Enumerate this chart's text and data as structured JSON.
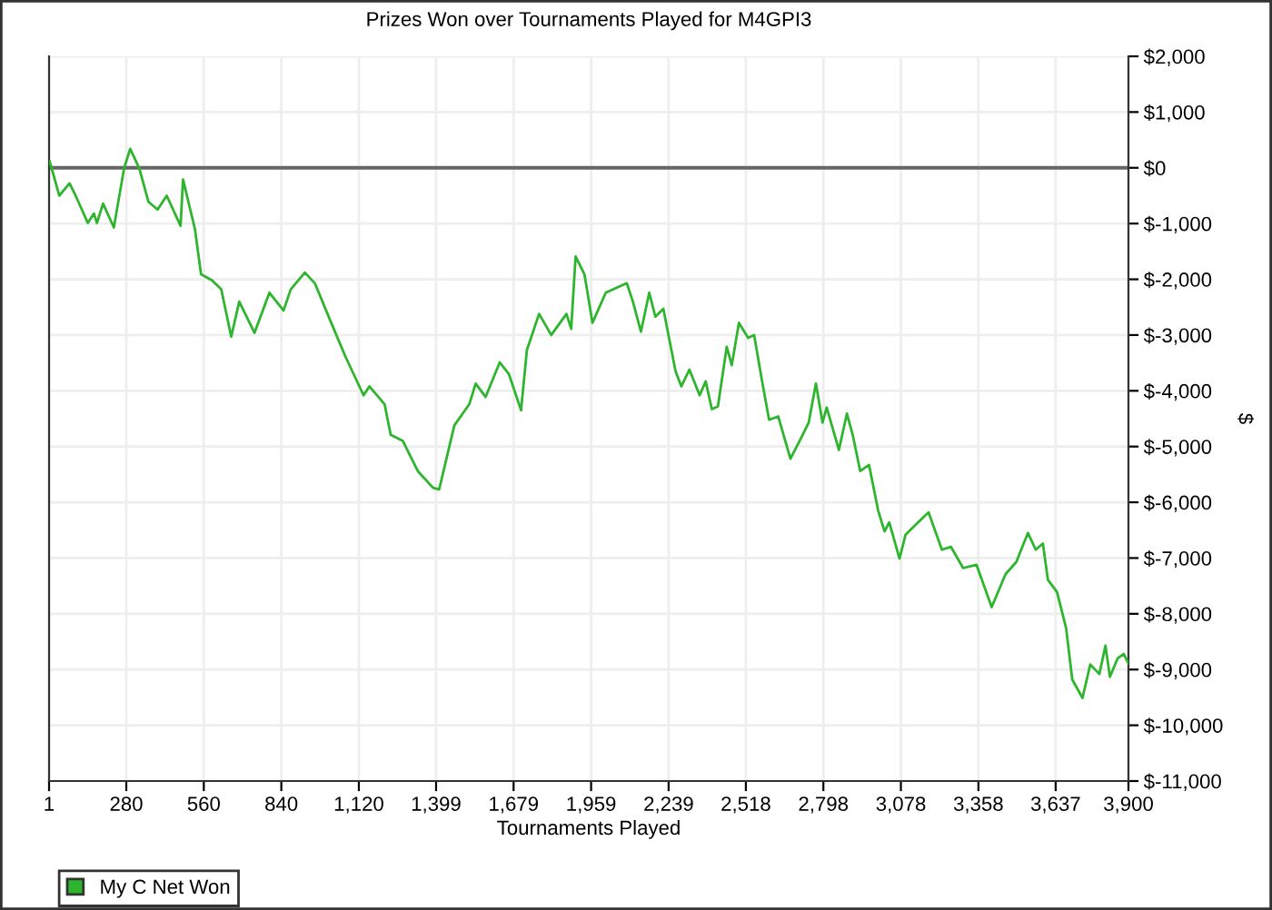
{
  "chart_data": {
    "type": "line",
    "title": "Prizes Won over Tournaments Played for M4GPI3",
    "xlabel": "Tournaments Played",
    "ylabel": "$",
    "xlim": [
      1,
      3900
    ],
    "xticks": [
      1,
      280,
      560,
      840,
      {
        "value": 1120,
        "label": "1,120"
      },
      {
        "value": 1399,
        "label": "1,399"
      },
      {
        "value": 1679,
        "label": "1,679"
      },
      {
        "value": 1959,
        "label": "1,959"
      },
      {
        "value": 2239,
        "label": "2,239"
      },
      {
        "value": 2518,
        "label": "2,518"
      },
      {
        "value": 2798,
        "label": "2,798"
      },
      {
        "value": 3078,
        "label": "3,078"
      },
      {
        "value": 3358,
        "label": "3,358"
      },
      {
        "value": 3637,
        "label": "3,637"
      },
      {
        "value": 3900,
        "label": "3,900"
      }
    ],
    "ylim": [
      -11000,
      2000
    ],
    "yticks": [
      {
        "value": 2000,
        "label": "$2,000"
      },
      {
        "value": 1000,
        "label": "$1,000"
      },
      {
        "value": 0,
        "label": "$0"
      },
      {
        "value": -1000,
        "label": "$-1,000"
      },
      {
        "value": -2000,
        "label": "$-2,000"
      },
      {
        "value": -3000,
        "label": "$-3,000"
      },
      {
        "value": -4000,
        "label": "$-4,000"
      },
      {
        "value": -5000,
        "label": "$-5,000"
      },
      {
        "value": -6000,
        "label": "$-6,000"
      },
      {
        "value": -7000,
        "label": "$-7,000"
      },
      {
        "value": -8000,
        "label": "$-8,000"
      },
      {
        "value": -9000,
        "label": "$-9,000"
      },
      {
        "value": -10000,
        "label": "$-10,000"
      },
      {
        "value": -11000,
        "label": "$-11,000"
      }
    ],
    "grid": true,
    "legend": "bottom left",
    "marker": "none",
    "line_style": "solid",
    "ref_lines": [
      {
        "axis": "y",
        "value": 0,
        "color": "#666666"
      }
    ],
    "series": [
      {
        "name": "My C Net Won",
        "color": "#2db52d",
        "x": [
          3,
          38,
          75,
          97,
          141,
          163,
          174,
          196,
          235,
          272,
          294,
          327,
          360,
          393,
          426,
          476,
          485,
          528,
          550,
          590,
          623,
          659,
          688,
          743,
          797,
          848,
          874,
          925,
          961,
          1016,
          1071,
          1137,
          1158,
          1213,
          1235,
          1279,
          1333,
          1388,
          1410,
          1465,
          1519,
          1542,
          1578,
          1629,
          1662,
          1706,
          1727,
          1771,
          1815,
          1870,
          1887,
          1903,
          1935,
          1964,
          2012,
          2088,
          2110,
          2139,
          2169,
          2191,
          2220,
          2264,
          2285,
          2314,
          2351,
          2373,
          2395,
          2417,
          2449,
          2467,
          2493,
          2526,
          2548,
          2576,
          2602,
          2635,
          2679,
          2712,
          2745,
          2771,
          2795,
          2810,
          2854,
          2883,
          2904,
          2931,
          2963,
          2996,
          3019,
          3036,
          3073,
          3095,
          3128,
          3178,
          3226,
          3259,
          3303,
          3351,
          3406,
          3456,
          3495,
          3537,
          3565,
          3591,
          3609,
          3642,
          3675,
          3697,
          3734,
          3762,
          3795,
          3817,
          3833,
          3861,
          3883,
          3900
        ],
        "values": [
          120,
          -500,
          -280,
          -500,
          -990,
          -820,
          -990,
          -640,
          -1070,
          -10,
          340,
          -10,
          -610,
          -750,
          -500,
          -1040,
          -210,
          -1100,
          -1910,
          -2020,
          -2180,
          -3030,
          -2400,
          -2960,
          -2240,
          -2560,
          -2180,
          -1880,
          -2070,
          -2730,
          -3380,
          -4080,
          -3920,
          -4240,
          -4790,
          -4900,
          -5440,
          -5740,
          -5770,
          -4620,
          -4240,
          -3870,
          -4110,
          -3490,
          -3700,
          -4350,
          -3270,
          -2620,
          -3000,
          -2620,
          -2890,
          -1590,
          -1910,
          -2780,
          -2240,
          -2070,
          -2400,
          -2940,
          -2240,
          -2670,
          -2530,
          -3650,
          -3920,
          -3620,
          -4080,
          -3830,
          -4330,
          -4280,
          -3210,
          -3540,
          -2780,
          -3050,
          -3000,
          -3810,
          -4520,
          -4460,
          -5220,
          -4900,
          -4570,
          -3870,
          -4570,
          -4300,
          -5060,
          -4410,
          -4790,
          -5440,
          -5330,
          -6150,
          -6520,
          -6360,
          -7010,
          -6580,
          -6420,
          -6180,
          -6850,
          -6800,
          -7180,
          -7120,
          -7880,
          -7290,
          -7070,
          -6550,
          -6850,
          -6740,
          -7390,
          -7610,
          -8260,
          -9180,
          -9510,
          -8910,
          -9080,
          -8570,
          -9130,
          -8800,
          -8720,
          -8890
        ]
      }
    ]
  }
}
